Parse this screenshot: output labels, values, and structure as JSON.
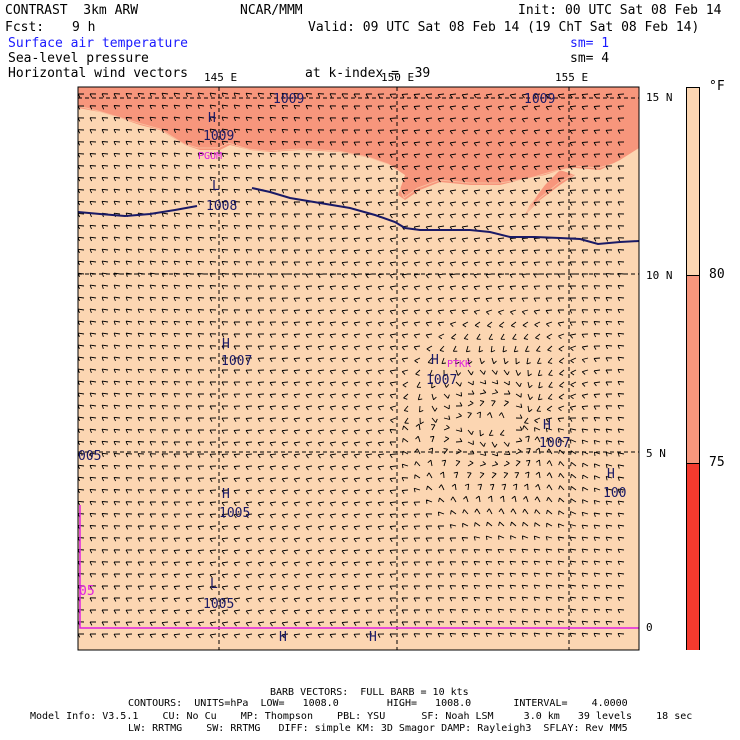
{
  "header": {
    "title": "CONTRAST  3km ARW",
    "center": "NCAR/MMM",
    "init": "Init: 00 UTC Sat 08 Feb 14",
    "fcst_label": "Fcst:",
    "fcst_value": "9 h",
    "valid": "Valid: 09 UTC Sat 08 Feb 14 (19 ChT Sat 08 Feb 14)",
    "fields": [
      {
        "label": "Surface air temperature",
        "color": "#1a1aff",
        "sm": "sm= 1"
      },
      {
        "label": "Sea-level pressure",
        "color": "#000000",
        "sm": "sm= 4"
      },
      {
        "label": "Horizontal wind vectors",
        "color": "#000000",
        "kindex": "at k-index =  39"
      }
    ]
  },
  "axes": {
    "lon_labels": [
      "145 E",
      "150 E",
      "155 E"
    ],
    "lat_labels": [
      "15 N",
      "10 N",
      "5 N",
      "0"
    ]
  },
  "legend": {
    "unit": "°F",
    "labels": [
      "80",
      "75"
    ],
    "colors": [
      "#fcd6b2",
      "#f7967c",
      "#f53a2e"
    ]
  },
  "map": {
    "fill_colors": {
      "cool": "#fcd6b2",
      "warm": "#f7967c"
    },
    "pressure_labels": [
      "1009",
      "1009",
      "1009",
      "1008",
      "1007",
      "1007",
      "1007",
      "005",
      "1005",
      "100",
      "1005",
      "05"
    ],
    "pressure_centers": [
      "H",
      "L",
      "H",
      "H",
      "H",
      "H",
      "H",
      "L",
      "H",
      "H"
    ],
    "stations": [
      "PGUM",
      "PTKK"
    ],
    "contour_color": "#1a1a66",
    "boundary_color": "#e020e0"
  },
  "footer": {
    "barb": "BARB VECTORS:  FULL BARB = 10 kts",
    "contours": "CONTOURS:  UNITS=hPa  LOW=   1008.0        HIGH=   1008.0       INTERVAL=    4.0000",
    "model1": "Model Info: V3.5.1    CU: No Cu    MP: Thompson    PBL: YSU      SF: Noah LSM     3.0 km   39 levels    18 sec",
    "model2": "LW: RRTMG    SW: RRTMG   DIFF: simple KM: 3D Smagor DAMP: Rayleigh3  SFLAY: Rev MM5"
  }
}
